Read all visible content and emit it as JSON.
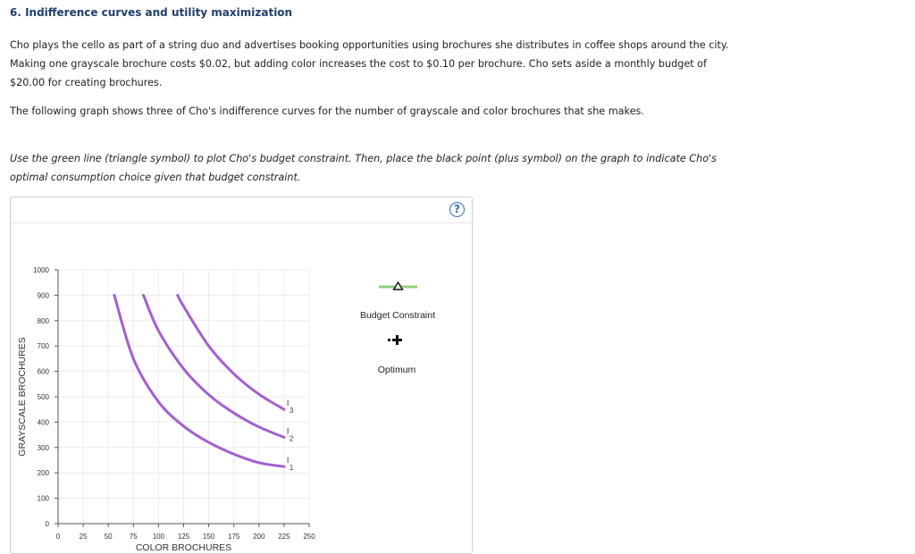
{
  "question": {
    "title": "6. Indifference curves and utility maximization",
    "paragraph1": "Cho plays the cello as part of a string duo and advertises booking opportunities using brochures she distributes in coffee shops around the city. Making one grayscale brochure costs $0.02, but adding color increases the cost to $0.10 per brochure. Cho sets aside a monthly budget of $20.00 for creating brochures.",
    "paragraph2": "The following graph shows three of Cho's indifference curves for the number of grayscale and color brochures that she makes.",
    "instruction": "Use the green line (triangle symbol) to plot Cho's budget constraint. Then, place the black point (plus symbol) on the graph to indicate Cho's optimal consumption choice given that budget constraint."
  },
  "help_symbol": "?",
  "chart_data": {
    "type": "line",
    "xlabel": "COLOR BROCHURES",
    "ylabel": "GRAYSCALE BROCHURES",
    "xlim": [
      0,
      250
    ],
    "ylim": [
      0,
      1000
    ],
    "xticks": [
      "0",
      "25",
      "50",
      "75",
      "100",
      "125",
      "150",
      "175",
      "200",
      "225",
      "250"
    ],
    "yticks": [
      "0",
      "100",
      "200",
      "300",
      "400",
      "500",
      "600",
      "700",
      "800",
      "900",
      "1000"
    ],
    "grid": true,
    "series": [
      {
        "name": "I1",
        "sub": "1",
        "x": [
          56,
          75,
          100,
          125,
          150,
          175,
          200,
          225
        ],
        "y": [
          900,
          650,
          480,
          384,
          320,
          274,
          240,
          225
        ]
      },
      {
        "name": "I2",
        "sub": "2",
        "x": [
          85,
          100,
          125,
          150,
          175,
          200,
          225
        ],
        "y": [
          900,
          760,
          610,
          508,
          436,
          381,
          340
        ]
      },
      {
        "name": "I3",
        "sub": "3",
        "x": [
          119,
          125,
          150,
          175,
          200,
          225
        ],
        "y": [
          900,
          856,
          700,
          590,
          510,
          450
        ]
      }
    ],
    "curve_color": "#a35fd1",
    "legend": {
      "placement": "right",
      "budget_label": "Budget Constraint",
      "budget_color": "#8fd17a",
      "optimum_label": "Optimum"
    }
  }
}
